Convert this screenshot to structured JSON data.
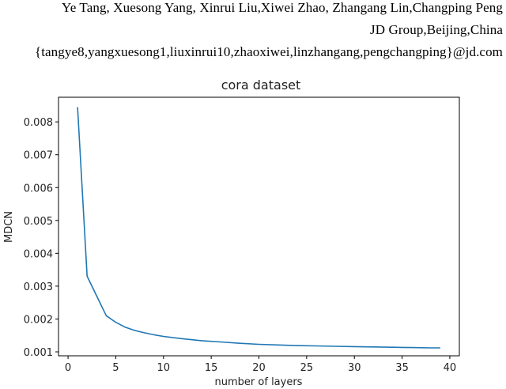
{
  "header": {
    "authors": "Ye Tang, Xuesong Yang, Xinrui Liu,Xiwei Zhao, Zhangang Lin,Changping Peng",
    "affiliation": "JD Group,Beijing,China",
    "emails": "{tangye8,yangxuesong1,liuxinrui10,zhaoxiwei,linzhangang,pengchangping}@jd.com"
  },
  "chart_data": {
    "type": "line",
    "title": "cora dataset",
    "xlabel": "number of layers",
    "ylabel": "MDCN",
    "xlim": [
      -1,
      41
    ],
    "ylim": [
      0.00088,
      0.00875
    ],
    "xticks": [
      0,
      5,
      10,
      15,
      20,
      25,
      30,
      35,
      40
    ],
    "yticks": [
      0.001,
      0.002,
      0.003,
      0.004,
      0.005,
      0.006,
      0.007,
      0.008
    ],
    "ytick_labels": [
      "0.001",
      "0.002",
      "0.003",
      "0.004",
      "0.005",
      "0.006",
      "0.007",
      "0.008"
    ],
    "grid": false,
    "color": "#1f77b4",
    "series": [
      {
        "x": [
          1,
          2,
          3,
          4,
          5,
          6,
          7,
          8,
          9,
          10,
          12,
          14,
          16,
          18,
          20,
          22,
          24,
          26,
          28,
          30,
          32,
          34,
          36,
          38,
          39
        ],
        "y": [
          0.00845,
          0.0033,
          0.0027,
          0.0021,
          0.0019,
          0.00175,
          0.00165,
          0.00158,
          0.00152,
          0.00147,
          0.0014,
          0.00134,
          0.0013,
          0.00126,
          0.00123,
          0.00121,
          0.00119,
          0.00118,
          0.00117,
          0.00116,
          0.00115,
          0.00114,
          0.00113,
          0.00112,
          0.00112
        ]
      }
    ]
  }
}
